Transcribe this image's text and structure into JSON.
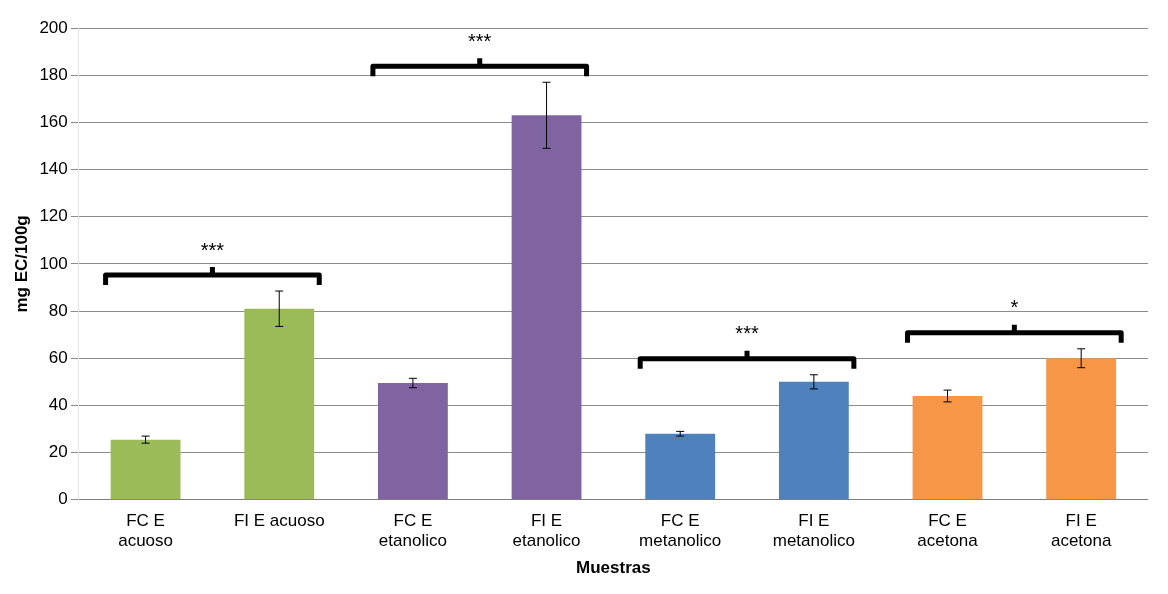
{
  "chart_data": {
    "type": "bar",
    "xlabel": "Muestras",
    "ylabel": "mg EC/100g",
    "categories": [
      "FC E\nacuoso",
      "FI E acuoso",
      "FC E\netanolico",
      "FI E\netanolico",
      "FC E\nmetanolico",
      "FI E\nmetanolico",
      "FC E\nacetona",
      "FI E\nacetona"
    ],
    "values": [
      25.5,
      81,
      49.5,
      163,
      28,
      50,
      44,
      60
    ],
    "errors": [
      1.5,
      7.5,
      2,
      14,
      1,
      3,
      2.5,
      4
    ],
    "colors": [
      "#9bbb59",
      "#9bbb59",
      "#8064a2",
      "#8064a2",
      "#4f81bd",
      "#4f81bd",
      "#f79646",
      "#f79646"
    ],
    "ylim": [
      0,
      200
    ],
    "yticks": [
      0,
      20,
      40,
      60,
      80,
      100,
      120,
      140,
      160,
      180,
      200
    ],
    "grid": "y",
    "annotations": [
      "***",
      "***",
      "***",
      "*"
    ]
  }
}
